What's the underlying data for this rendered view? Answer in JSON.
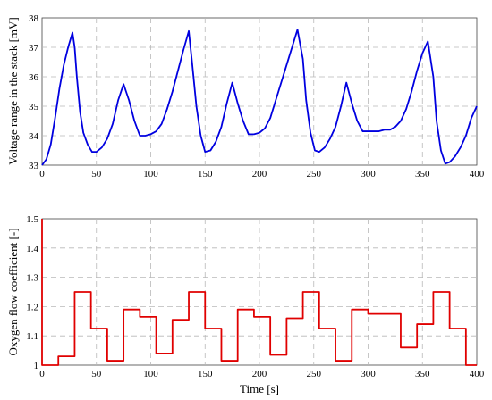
{
  "chart_data": [
    {
      "type": "line",
      "title": "",
      "xlabel": "",
      "ylabel": "Voltage range in the stack [mV]",
      "xlim": [
        0,
        400
      ],
      "ylim": [
        33,
        38
      ],
      "xticks": [
        0,
        50,
        100,
        150,
        200,
        250,
        300,
        350,
        400
      ],
      "yticks": [
        33,
        34,
        35,
        36,
        37,
        38
      ],
      "grid": true,
      "series": [
        {
          "color": "#0000e0",
          "x": [
            0,
            4,
            8,
            12,
            16,
            20,
            24,
            28,
            30,
            32,
            35,
            38,
            42,
            46,
            50,
            55,
            60,
            65,
            70,
            75,
            80,
            85,
            90,
            95,
            100,
            105,
            110,
            115,
            120,
            125,
            130,
            135,
            138,
            142,
            146,
            150,
            155,
            160,
            165,
            170,
            175,
            180,
            185,
            190,
            195,
            200,
            205,
            210,
            215,
            220,
            225,
            230,
            235,
            240,
            243,
            247,
            251,
            255,
            260,
            265,
            270,
            275,
            280,
            285,
            290,
            295,
            300,
            305,
            310,
            315,
            320,
            325,
            330,
            335,
            340,
            345,
            350,
            355,
            360,
            363,
            367,
            371,
            375,
            380,
            385,
            390,
            395,
            400
          ],
          "y": [
            33.0,
            33.2,
            33.7,
            34.6,
            35.6,
            36.4,
            37.0,
            37.5,
            37.0,
            36.0,
            34.8,
            34.1,
            33.7,
            33.45,
            33.45,
            33.6,
            33.9,
            34.4,
            35.2,
            35.75,
            35.2,
            34.5,
            34.0,
            34.0,
            34.05,
            34.15,
            34.4,
            34.9,
            35.5,
            36.2,
            36.9,
            37.55,
            36.5,
            35.0,
            34.0,
            33.45,
            33.5,
            33.8,
            34.3,
            35.1,
            35.8,
            35.1,
            34.5,
            34.05,
            34.05,
            34.1,
            34.25,
            34.6,
            35.2,
            35.8,
            36.4,
            37.0,
            37.6,
            36.6,
            35.2,
            34.1,
            33.5,
            33.45,
            33.6,
            33.9,
            34.3,
            35.0,
            35.8,
            35.1,
            34.5,
            34.15,
            34.15,
            34.15,
            34.15,
            34.2,
            34.2,
            34.3,
            34.5,
            34.9,
            35.5,
            36.2,
            36.8,
            37.2,
            36.0,
            34.5,
            33.5,
            33.05,
            33.1,
            33.3,
            33.6,
            34.0,
            34.6,
            35.0
          ]
        }
      ]
    },
    {
      "type": "line",
      "title": "",
      "xlabel": "Time [s]",
      "ylabel": "Oxygen flow coefficient [-]",
      "xlim": [
        0,
        400
      ],
      "ylim": [
        1,
        1.5
      ],
      "xticks": [
        0,
        50,
        100,
        150,
        200,
        250,
        300,
        350,
        400
      ],
      "yticks": [
        1.0,
        1.1,
        1.2,
        1.3,
        1.4,
        1.5
      ],
      "ytick_labels": [
        "1",
        "1.1",
        "1.2",
        "1.3",
        "1.4",
        "1.5"
      ],
      "grid": true,
      "series": [
        {
          "color": "#e00000",
          "x": [
            0,
            0,
            15,
            15,
            30,
            30,
            45,
            45,
            60,
            60,
            75,
            75,
            90,
            90,
            105,
            105,
            120,
            120,
            135,
            135,
            150,
            150,
            165,
            165,
            180,
            180,
            195,
            195,
            210,
            210,
            225,
            225,
            240,
            240,
            255,
            255,
            270,
            270,
            285,
            285,
            300,
            300,
            315,
            315,
            330,
            330,
            345,
            345,
            360,
            360,
            375,
            375,
            390,
            390,
            400
          ],
          "y": [
            1.5,
            1.0,
            1.0,
            1.03,
            1.03,
            1.25,
            1.25,
            1.125,
            1.125,
            1.015,
            1.015,
            1.19,
            1.19,
            1.165,
            1.165,
            1.04,
            1.04,
            1.155,
            1.155,
            1.25,
            1.25,
            1.125,
            1.125,
            1.015,
            1.015,
            1.19,
            1.19,
            1.165,
            1.165,
            1.035,
            1.035,
            1.16,
            1.16,
            1.25,
            1.25,
            1.125,
            1.125,
            1.015,
            1.015,
            1.19,
            1.19,
            1.175,
            1.175,
            1.175,
            1.175,
            1.06,
            1.06,
            1.14,
            1.14,
            1.25,
            1.25,
            1.125,
            1.125,
            1.0,
            1.0
          ]
        }
      ]
    }
  ]
}
